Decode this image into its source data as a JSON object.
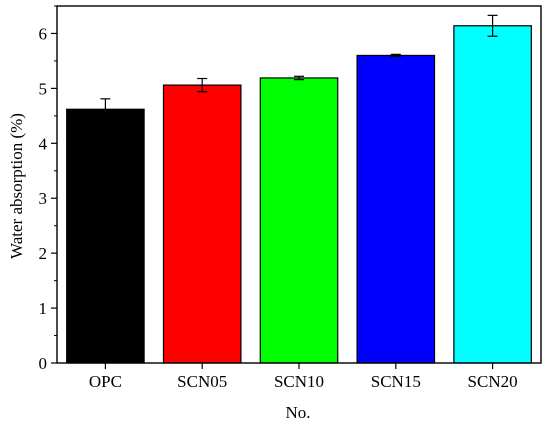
{
  "chart_data": {
    "type": "bar",
    "title": "",
    "xlabel": "No.",
    "ylabel": "Water absorption (%)",
    "categories": [
      "OPC",
      "SCN05",
      "SCN10",
      "SCN15",
      "SCN20"
    ],
    "values": [
      4.62,
      5.06,
      5.19,
      5.6,
      6.14
    ],
    "errors": [
      0.19,
      0.12,
      0.03,
      0.02,
      0.19
    ],
    "colors": [
      "#000000",
      "#ff0000",
      "#00ff00",
      "#0000ff",
      "#00ffff"
    ],
    "ylim": [
      0,
      6.5
    ],
    "yticks": [
      0,
      1,
      2,
      3,
      4,
      5,
      6
    ],
    "yticks_minor_step": 0.5,
    "grid": false,
    "legend": "none"
  }
}
